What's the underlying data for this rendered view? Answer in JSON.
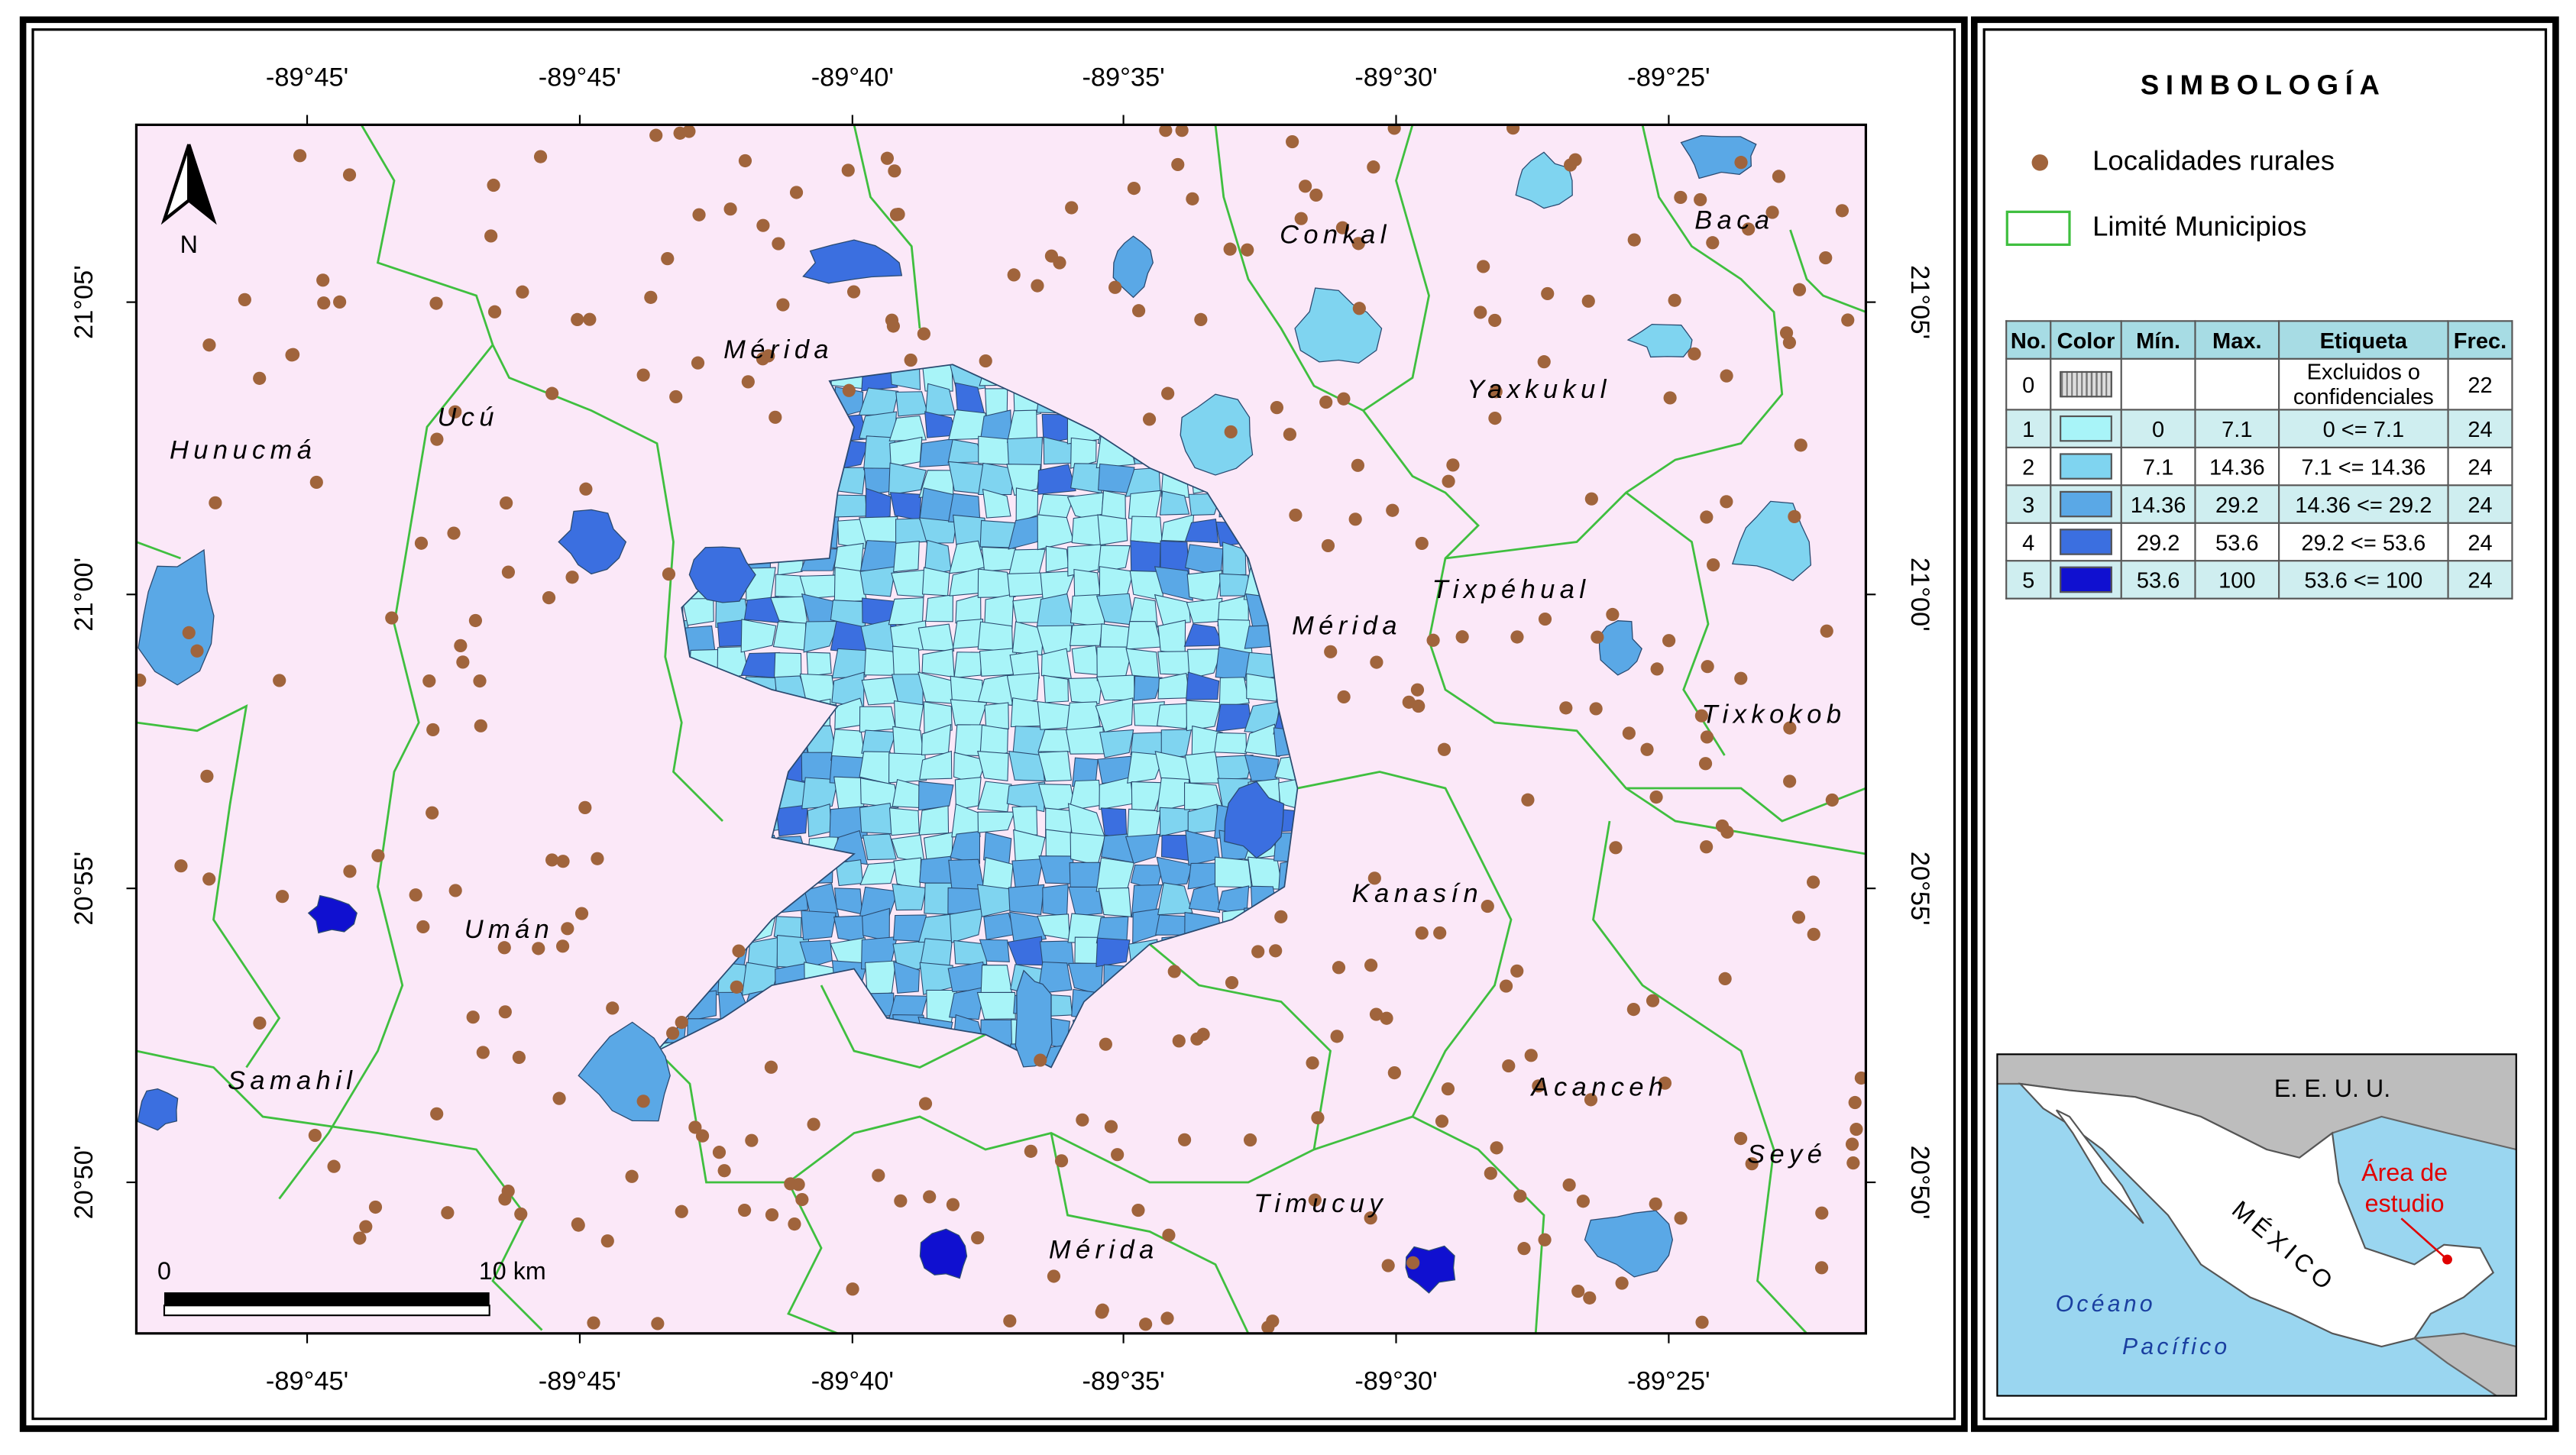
{
  "map": {
    "top_labels": [
      "-89°45'",
      "-89°45'",
      "-89°40'",
      "-89°35'",
      "-89°30'",
      "-89°25'"
    ],
    "bottom_labels": [
      "-89°45'",
      "-89°45'",
      "-89°40'",
      "-89°35'",
      "-89°30'",
      "-89°25'"
    ],
    "left_labels": [
      "21°05'",
      "21°00'",
      "20°55'",
      "20°50'"
    ],
    "right_labels": [
      "21°05'",
      "21°00'",
      "20°55'",
      "20°50'"
    ],
    "places": [
      "Conkal",
      "Baca",
      "Mérida",
      "Yaxkukul",
      "Ucú",
      "Hunucmá",
      "Tixpéhual",
      "Mérida",
      "Tixkokob",
      "Kanasín",
      "Umán",
      "Samahil",
      "Acanceh",
      "Seyé",
      "Timucuy",
      "Mérida"
    ],
    "north": "N",
    "scale": {
      "start": "0",
      "end": "10 km"
    }
  },
  "legend": {
    "title": "SIMBOLOGÍA",
    "items": [
      "Localidades rurales",
      "Limité Municipios"
    ]
  },
  "table": {
    "header": [
      "No.",
      "Color",
      "Mín.",
      "Max.",
      "Etiqueta",
      "Frec."
    ],
    "rows": [
      {
        "no": "0",
        "etiqueta": "Excluidos o confidenciales",
        "frec": "22"
      },
      {
        "no": "1",
        "color": "#a8f4f8",
        "min": "0",
        "max": "7.1",
        "etiqueta": "0 <= 7.1",
        "frec": "24"
      },
      {
        "no": "2",
        "color": "#7fd4f0",
        "min": "7.1",
        "max": "14.36",
        "etiqueta": "7.1 <= 14.36",
        "frec": "24"
      },
      {
        "no": "3",
        "color": "#5aa8e6",
        "min": "14.36",
        "max": "29.2",
        "etiqueta": "14.36 <= 29.2",
        "frec": "24"
      },
      {
        "no": "4",
        "color": "#3b6fe0",
        "min": "29.2",
        "max": "53.6",
        "etiqueta": "29.2 <= 53.6",
        "frec": "24"
      },
      {
        "no": "5",
        "color": "#1010d0",
        "min": "53.6",
        "max": "100",
        "etiqueta": "53.6 <= 100",
        "frec": "24"
      }
    ]
  },
  "inset": {
    "country_north": "E. E. U. U.",
    "country": "MÉXICO",
    "study_area": [
      "Área de",
      "estudio"
    ],
    "ocean": [
      "Océano",
      "Pacífico"
    ]
  }
}
